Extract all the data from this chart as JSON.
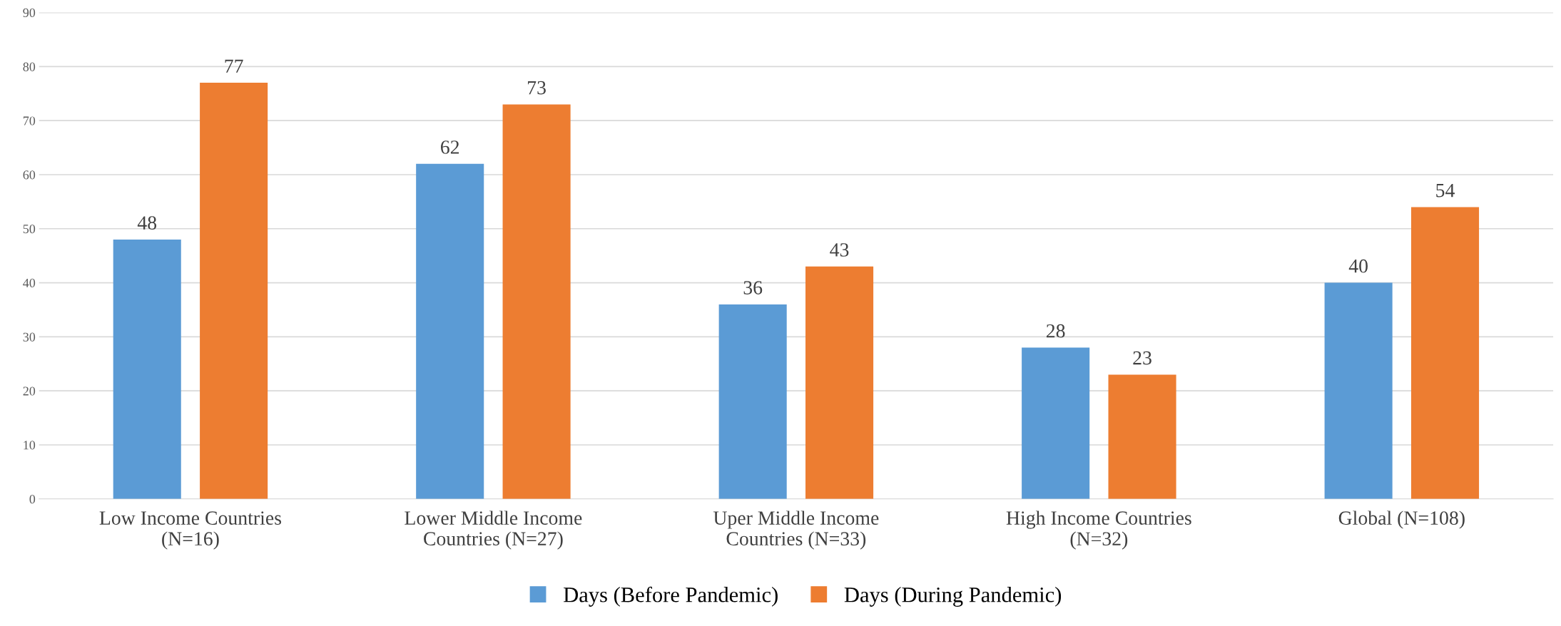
{
  "chart_data": {
    "type": "bar",
    "categories": [
      "Low Income Countries\n(N=16)",
      "Lower Middle Income\nCountries (N=27)",
      "Uper Middle Income\nCountries (N=33)",
      "High Income Countries\n(N=32)",
      "Global (N=108)"
    ],
    "series": [
      {
        "name": "Days (Before Pandemic)",
        "color": "#5b9bd5",
        "values": [
          48,
          62,
          36,
          28,
          40
        ]
      },
      {
        "name": "Days (During Pandemic)",
        "color": "#ed7d31",
        "values": [
          77,
          73,
          43,
          23,
          54
        ]
      }
    ],
    "ylim": [
      0,
      90
    ],
    "yticks": [
      0,
      10,
      20,
      30,
      40,
      50,
      60,
      70,
      80,
      90
    ],
    "grid": "y",
    "legend": "bottom",
    "data_labels": true
  }
}
